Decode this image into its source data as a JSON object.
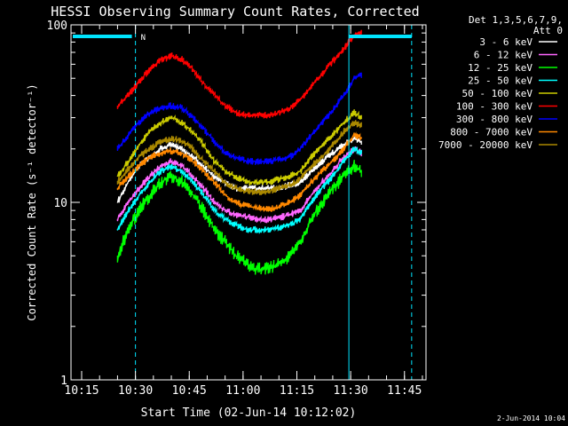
{
  "colors": {
    "background": "#000000",
    "axis": "#ffffff",
    "marker": "#00e5ff"
  },
  "chart_data": {
    "type": "line",
    "title": "HESSI Observing Summary Count Rates, Corrected",
    "xlabel": "Start Time (02-Jun-14 10:12:02)",
    "ylabel": "Corrected Count Rate (s⁻¹ detector⁻¹)",
    "yscale": "log",
    "ylim": [
      1,
      100
    ],
    "x_ticks": [
      "10:15",
      "10:30",
      "10:45",
      "11:00",
      "11:15",
      "11:30",
      "11:45"
    ],
    "y_ticks": [
      "1",
      "10",
      "100"
    ],
    "grid": false,
    "legend_position": "right",
    "legend_title": [
      "Det 1,3,5,6,7,9,",
      "Att 0"
    ],
    "footer": "2-Jun-2014 10:04",
    "marker_label": "N",
    "marker_lines": {
      "solid": [
        "10:12:02",
        "11:29:30"
      ],
      "dashed": [
        "10:30:00",
        "11:47:00"
      ]
    },
    "x": [
      "10:25",
      "10:28",
      "10:31",
      "10:34",
      "10:37",
      "10:40",
      "10:43",
      "10:46",
      "10:49",
      "10:52",
      "10:55",
      "10:58",
      "11:01",
      "11:04",
      "11:07",
      "11:10",
      "11:13",
      "11:16",
      "11:19",
      "11:22",
      "11:25",
      "11:28",
      "11:31",
      "11:33"
    ],
    "series": [
      {
        "name": "3 - 6 keV",
        "color": "#ffffff",
        "values": [
          10,
          13,
          16,
          18,
          20,
          21,
          20,
          18,
          16,
          14,
          13,
          12,
          12,
          12,
          12,
          12,
          12.5,
          13,
          15,
          17,
          19,
          21,
          23,
          22
        ]
      },
      {
        "name": "6 - 12 keV",
        "color": "#ff66ff",
        "values": [
          8,
          10,
          12,
          14,
          16,
          17,
          16,
          14,
          12,
          10,
          9,
          8.5,
          8.3,
          8,
          8,
          8.2,
          8.5,
          9,
          11,
          13,
          15,
          18,
          20,
          19
        ]
      },
      {
        "name": "12 - 25 keV",
        "color": "#00ff00",
        "values": [
          5,
          7,
          9,
          11,
          13,
          14,
          13,
          11,
          9,
          7,
          6,
          5,
          4.5,
          4.2,
          4.2,
          4.5,
          5,
          6,
          8,
          10,
          12,
          14,
          16,
          15
        ]
      },
      {
        "name": "25 - 50 keV",
        "color": "#00ffff",
        "values": [
          7,
          9,
          11,
          13,
          15,
          16,
          15,
          13,
          11,
          9,
          8,
          7.5,
          7,
          7,
          7,
          7.2,
          7.5,
          8,
          10,
          12,
          14,
          17,
          20,
          19
        ]
      },
      {
        "name": "50 - 100 keV",
        "color": "#cccc00",
        "values": [
          14,
          17,
          21,
          25,
          28,
          30,
          28,
          25,
          21,
          17,
          15,
          14,
          13,
          13,
          13,
          13.5,
          14,
          15,
          18,
          21,
          24,
          28,
          32,
          30
        ]
      },
      {
        "name": "100 - 300 keV",
        "color": "#ff0000",
        "values": [
          35,
          40,
          48,
          56,
          63,
          67,
          64,
          56,
          47,
          40,
          35,
          32,
          31,
          31,
          31,
          32,
          34,
          38,
          45,
          53,
          62,
          73,
          88,
          90
        ]
      },
      {
        "name": "300 - 800 keV",
        "color": "#0000ff",
        "values": [
          20,
          24,
          28,
          32,
          34,
          35,
          34,
          30,
          26,
          22,
          19,
          18,
          17,
          17,
          17,
          17.5,
          18,
          20,
          24,
          28,
          33,
          40,
          50,
          52
        ]
      },
      {
        "name": "800 - 7000 keV",
        "color": "#ff8800",
        "values": [
          12,
          14,
          16,
          18,
          19,
          19.5,
          19,
          17,
          15,
          13,
          11,
          10,
          9.5,
          9.3,
          9.2,
          9.4,
          10,
          11,
          13,
          15,
          17,
          20,
          24,
          23
        ]
      },
      {
        "name": "7000 - 20000 keV",
        "color": "#aa8800",
        "values": [
          13,
          15.5,
          18,
          20,
          22,
          23,
          22,
          20,
          17,
          15,
          13,
          12,
          11.5,
          11.5,
          11.5,
          12,
          12.5,
          13.5,
          16,
          18,
          21,
          25,
          28,
          27
        ]
      }
    ]
  }
}
